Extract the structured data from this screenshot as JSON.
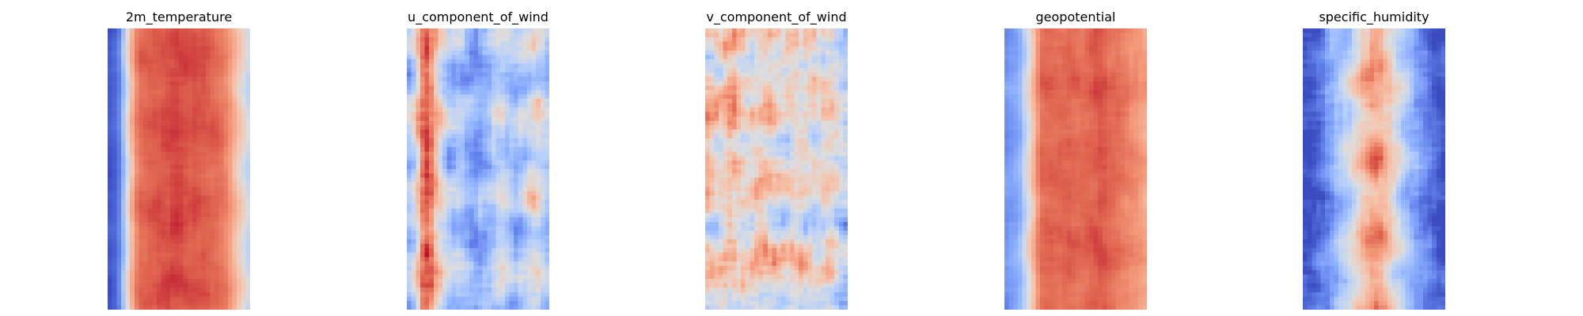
{
  "figure": {
    "panels": [
      {
        "title": "2m_temperature"
      },
      {
        "title": "u_component_of_wind"
      },
      {
        "title": "v_component_of_wind"
      },
      {
        "title": "geopotential"
      },
      {
        "title": "specific_humidity"
      }
    ]
  },
  "chart_data": [
    {
      "type": "heatmap",
      "title": "2m_temperature",
      "colormap": "coolwarm",
      "grid": false,
      "axes": "off",
      "columns": 32,
      "rows": 64,
      "column_profile": [
        -0.95,
        -0.9,
        -0.75,
        -0.4,
        0.0,
        0.35,
        0.6,
        0.7,
        0.72,
        0.74,
        0.75,
        0.76,
        0.77,
        0.78,
        0.8,
        0.82,
        0.82,
        0.8,
        0.78,
        0.78,
        0.76,
        0.76,
        0.74,
        0.72,
        0.7,
        0.66,
        0.6,
        0.5,
        0.35,
        0.2,
        0.05,
        -0.1
      ],
      "row_variation": 0.12,
      "noise": 0.08,
      "seed": 11
    },
    {
      "type": "heatmap",
      "title": "u_component_of_wind",
      "colormap": "coolwarm",
      "grid": false,
      "axes": "off",
      "columns": 32,
      "rows": 64,
      "column_profile": [
        -0.35,
        -0.2,
        0.15,
        0.6,
        0.75,
        0.6,
        0.3,
        0.05,
        -0.15,
        -0.3,
        -0.35,
        -0.3,
        -0.35,
        -0.45,
        -0.5,
        -0.55,
        -0.5,
        -0.45,
        -0.4,
        -0.3,
        -0.2,
        -0.15,
        -0.2,
        -0.3,
        -0.35,
        -0.3,
        -0.2,
        -0.1,
        0.0,
        -0.05,
        -0.2,
        -0.3
      ],
      "row_variation": 0.25,
      "noise": 0.32,
      "seed": 23
    },
    {
      "type": "heatmap",
      "title": "v_component_of_wind",
      "colormap": "coolwarm",
      "grid": false,
      "axes": "off",
      "columns": 32,
      "rows": 64,
      "column_profile": [
        0.2,
        0.15,
        0.1,
        0.1,
        0.15,
        0.2,
        0.2,
        0.15,
        0.15,
        0.1,
        0.1,
        0.15,
        0.2,
        0.2,
        0.15,
        0.1,
        0.05,
        0.0,
        0.0,
        0.05,
        0.1,
        0.1,
        0.1,
        0.05,
        0.0,
        0.0,
        0.05,
        0.1,
        0.1,
        0.0,
        -0.1,
        -0.2
      ],
      "row_variation": 0.2,
      "noise": 0.45,
      "seed": 37
    },
    {
      "type": "heatmap",
      "title": "geopotential",
      "colormap": "coolwarm",
      "grid": false,
      "axes": "off",
      "columns": 32,
      "rows": 64,
      "column_profile": [
        -0.65,
        -0.6,
        -0.55,
        -0.45,
        -0.2,
        0.05,
        0.3,
        0.55,
        0.7,
        0.72,
        0.72,
        0.7,
        0.7,
        0.72,
        0.74,
        0.72,
        0.7,
        0.7,
        0.72,
        0.74,
        0.76,
        0.78,
        0.76,
        0.72,
        0.7,
        0.68,
        0.65,
        0.62,
        0.58,
        0.55,
        0.5,
        0.45
      ],
      "row_variation": 0.12,
      "noise": 0.1,
      "seed": 53
    },
    {
      "type": "heatmap",
      "title": "specific_humidity",
      "colormap": "coolwarm",
      "grid": false,
      "axes": "off",
      "columns": 32,
      "rows": 64,
      "column_profile": [
        -0.95,
        -0.95,
        -0.9,
        -0.85,
        -0.75,
        -0.65,
        -0.55,
        -0.45,
        -0.35,
        -0.25,
        -0.15,
        -0.05,
        0.1,
        0.25,
        0.35,
        0.45,
        0.45,
        0.4,
        0.3,
        0.2,
        0.05,
        -0.1,
        -0.25,
        -0.35,
        -0.45,
        -0.55,
        -0.65,
        -0.72,
        -0.8,
        -0.85,
        -0.9,
        -0.92
      ],
      "row_variation": 0.15,
      "noise": 0.25,
      "seed": 71
    }
  ]
}
